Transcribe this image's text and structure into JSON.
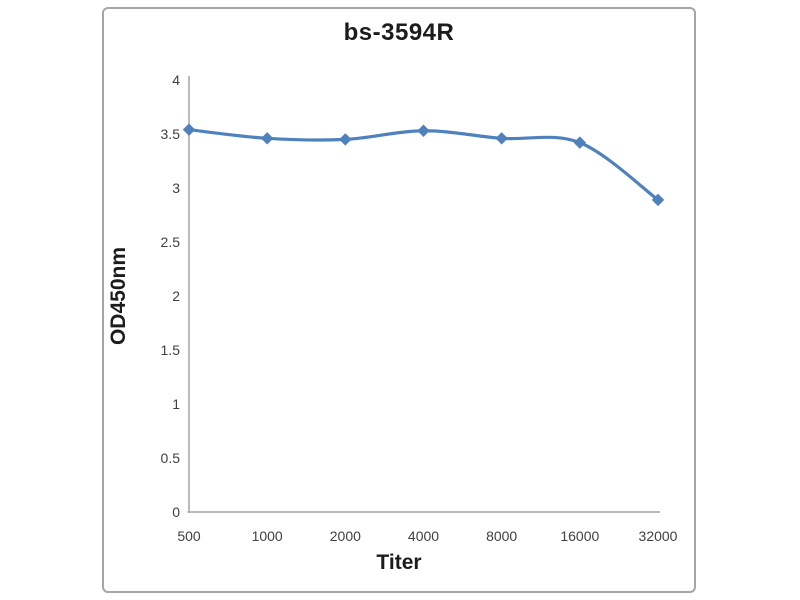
{
  "page": {
    "background": "#ffffff"
  },
  "frame": {
    "border_color": "#a6a6a6"
  },
  "chart_data": {
    "type": "line",
    "title": "bs-3594R",
    "xlabel": "Titer",
    "ylabel": "OD450nm",
    "categories": [
      "500",
      "1000",
      "2000",
      "4000",
      "8000",
      "16000",
      "32000"
    ],
    "series": [
      {
        "color": "#4f81bd",
        "marker": "diamond",
        "smooth": true,
        "values": [
          3.54,
          3.46,
          3.45,
          3.53,
          3.46,
          3.42,
          2.89
        ]
      }
    ],
    "ylim": [
      0,
      4
    ],
    "yticks": [
      0,
      0.5,
      1,
      1.5,
      2,
      2.5,
      3,
      3.5,
      4
    ],
    "grid": false,
    "legend_position": "none",
    "axis_color": "#a3a3a3",
    "tick_label_color": "#404040"
  }
}
